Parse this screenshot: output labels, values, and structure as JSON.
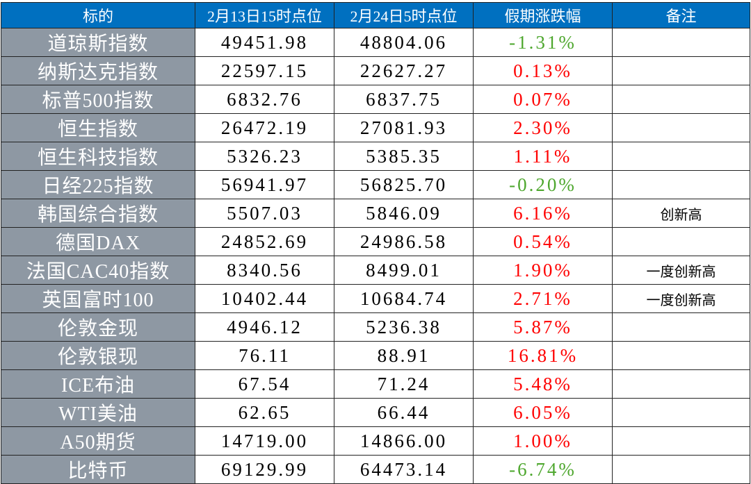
{
  "colors": {
    "header_bg": "#0070C0",
    "name_col_bg": "#8E98A3",
    "up": "#FF0000",
    "down": "#4EA72E"
  },
  "headers": [
    "标的",
    "2月13日15时点位",
    "2月24日5时点位",
    "假期涨跌幅",
    "备注"
  ],
  "rows": [
    {
      "name": "道琼斯指数",
      "before": "49451.98",
      "after": "48804.06",
      "change": "-1.31%",
      "dir": "down",
      "note": ""
    },
    {
      "name": "纳斯达克指数",
      "before": "22597.15",
      "after": "22627.27",
      "change": "0.13%",
      "dir": "up",
      "note": ""
    },
    {
      "name": "标普500指数",
      "before": "6832.76",
      "after": "6837.75",
      "change": "0.07%",
      "dir": "up",
      "note": ""
    },
    {
      "name": "恒生指数",
      "before": "26472.19",
      "after": "27081.93",
      "change": "2.30%",
      "dir": "up",
      "note": ""
    },
    {
      "name": "恒生科技指数",
      "before": "5326.23",
      "after": "5385.35",
      "change": "1.11%",
      "dir": "up",
      "note": ""
    },
    {
      "name": "日经225指数",
      "before": "56941.97",
      "after": "56825.70",
      "change": "-0.20%",
      "dir": "down",
      "note": ""
    },
    {
      "name": "韩国综合指数",
      "before": "5507.03",
      "after": "5846.09",
      "change": "6.16%",
      "dir": "up",
      "note": "创新高"
    },
    {
      "name": "德国DAX",
      "before": "24852.69",
      "after": "24986.58",
      "change": "0.54%",
      "dir": "up",
      "note": ""
    },
    {
      "name": "法国CAC40指数",
      "before": "8340.56",
      "after": "8499.01",
      "change": "1.90%",
      "dir": "up",
      "note": "一度创新高"
    },
    {
      "name": "英国富时100",
      "before": "10402.44",
      "after": "10684.74",
      "change": "2.71%",
      "dir": "up",
      "note": "一度创新高"
    },
    {
      "name": "伦敦金现",
      "before": "4946.12",
      "after": "5236.38",
      "change": "5.87%",
      "dir": "up",
      "note": ""
    },
    {
      "name": "伦敦银现",
      "before": "76.11",
      "after": "88.91",
      "change": "16.81%",
      "dir": "up",
      "note": ""
    },
    {
      "name": "ICE布油",
      "before": "67.54",
      "after": "71.24",
      "change": "5.48%",
      "dir": "up",
      "note": ""
    },
    {
      "name": "WTI美油",
      "before": "62.65",
      "after": "66.44",
      "change": "6.05%",
      "dir": "up",
      "note": ""
    },
    {
      "name": "A50期货",
      "before": "14719.00",
      "after": "14866.00",
      "change": "1.00%",
      "dir": "up",
      "note": ""
    },
    {
      "name": "比特币",
      "before": "69129.99",
      "after": "64473.14",
      "change": "-6.74%",
      "dir": "down",
      "note": ""
    }
  ]
}
